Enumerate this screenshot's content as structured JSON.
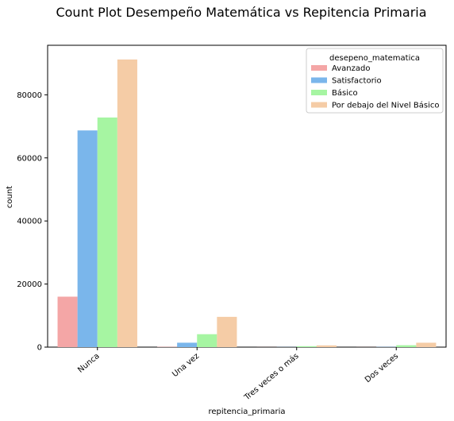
{
  "chart_data": {
    "type": "bar",
    "title": "Count Plot Desempeño Matemática vs Repitencia Primaria",
    "xlabel": "repitencia_primaria",
    "ylabel": "count",
    "ylim": [
      0,
      95700
    ],
    "yticks": [
      0,
      20000,
      40000,
      60000,
      80000
    ],
    "ytick_labels": [
      "0",
      "20000",
      "40000",
      "60000",
      "80000"
    ],
    "grid": false,
    "categories": [
      "Nunca",
      "Una vez",
      "Tres veces o más",
      "Dos veces"
    ],
    "series": [
      {
        "name": "Avanzado",
        "color": "#f4a6a6",
        "values": [
          16000,
          100,
          20,
          20
        ]
      },
      {
        "name": "Satisfactorio",
        "color": "#7ab6eb",
        "values": [
          68700,
          1400,
          50,
          80
        ]
      },
      {
        "name": "Básico",
        "color": "#a6f5a2",
        "values": [
          72800,
          4100,
          300,
          600
        ]
      },
      {
        "name": "Por debajo del Nivel Básico",
        "color": "#f5cca6",
        "values": [
          91200,
          9600,
          550,
          1400
        ]
      }
    ],
    "legend": {
      "title": "desepeno_matematica",
      "placement": "top-right"
    }
  }
}
